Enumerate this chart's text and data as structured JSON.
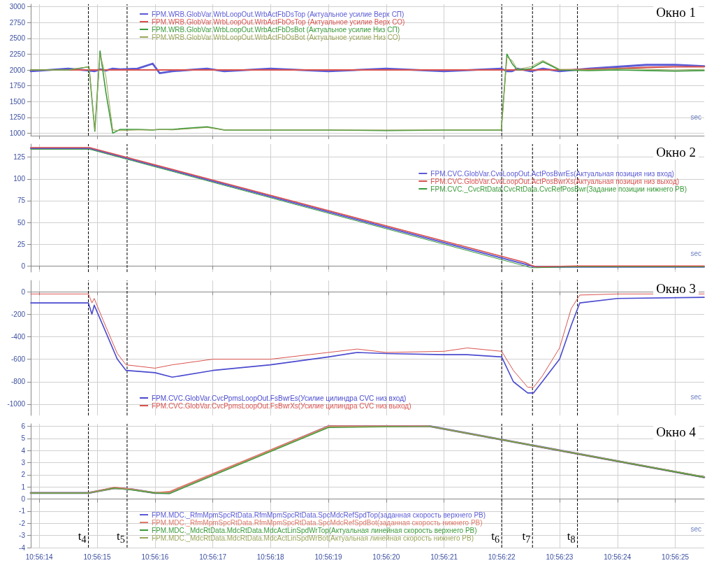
{
  "chart_data": [
    {
      "type": "line",
      "title": "Окно 1",
      "xlabel": "sec",
      "tick_labels": "y",
      "grid": true,
      "legend": "top left",
      "xlim": [
        10.937181,
        10.940417
      ],
      "ylim": [
        960,
        3040
      ],
      "xticks": [
        {
          "value": 10.937222,
          "label": null
        },
        {
          "value": 10.9375,
          "label": null
        },
        {
          "value": 10.937778,
          "label": null
        },
        {
          "value": 10.938056,
          "label": null
        },
        {
          "value": 10.938333,
          "label": null
        },
        {
          "value": 10.938611,
          "label": null
        },
        {
          "value": 10.938889,
          "label": null
        },
        {
          "value": 10.939167,
          "label": null
        },
        {
          "value": 10.939444,
          "label": null
        },
        {
          "value": 10.939722,
          "label": null
        },
        {
          "value": 10.94,
          "label": null
        },
        {
          "value": 10.940278,
          "label": null
        }
      ],
      "yticks": [
        1000,
        1250,
        1500,
        1750,
        2000,
        2250,
        2500,
        2750,
        3000
      ],
      "x": [
        10.937181,
        10.937361,
        10.937461,
        10.937489,
        10.937514,
        10.937542,
        10.937575,
        10.937611,
        10.937694,
        10.937767,
        10.9378,
        10.937861,
        10.938028,
        10.938111,
        10.938333,
        10.938611,
        10.938889,
        10.939167,
        10.939442,
        10.939469,
        10.939494,
        10.939519,
        10.939583,
        10.939642,
        10.939722,
        10.939861,
        10.94,
        10.940139,
        10.940278,
        10.940417
      ],
      "series": [
        {
          "name": "FPM.WRB.GlobVar.WrbLoopOut.WrbActFbDsTop (Актуальное усилие Верх СП)",
          "color": "#5b5bd6",
          "values": [
            1980,
            2020,
            1990,
            1980,
            2010,
            1990,
            2020,
            2010,
            2020,
            2100,
            1950,
            1980,
            2020,
            1980,
            2020,
            1980,
            2020,
            1980,
            2020,
            1980,
            1980,
            2020,
            1980,
            2020,
            1980,
            2020,
            2050,
            2080,
            2080,
            2060
          ]
        },
        {
          "name": "FPM.WRB.GlobVar.WrbLoopOut.WrbActFbOsTop (Актуальное усилие Верх СО)",
          "color": "#d9534f",
          "values": [
            2000,
            2000,
            2000,
            2000,
            2000,
            2000,
            2000,
            2000,
            2000,
            2000,
            2000,
            2000,
            2000,
            2000,
            2000,
            2000,
            2000,
            2000,
            2000,
            2000,
            2000,
            2000,
            2000,
            2000,
            2000,
            2010,
            2020,
            2040,
            2050,
            2050
          ]
        },
        {
          "name": "FPM.WRB.GlobVar.WrbLoopOut.WrbActFbDsBot (Актуальное усилие Низ СП)",
          "color": "#3a9a3a",
          "values": [
            2000,
            2000,
            2050,
            1030,
            2300,
            1650,
            1000,
            1060,
            1060,
            1050,
            1060,
            1060,
            1100,
            1050,
            1050,
            1050,
            1040,
            1050,
            1050,
            2250,
            2100,
            2000,
            2020,
            2130,
            2000,
            1990,
            2000,
            1990,
            1980,
            1990
          ]
        },
        {
          "name": "FPM.WRB.GlobVar.WrbLoopOut.WrbActFbOsBot (Актуальное усилие Низ СО)",
          "color": "#9aa55a",
          "values": [
            2000,
            2000,
            2050,
            1050,
            2250,
            1900,
            1050,
            1040,
            1050,
            1050,
            1060,
            1050,
            1090,
            1050,
            1050,
            1050,
            1050,
            1050,
            1050,
            2200,
            2150,
            2010,
            2050,
            2150,
            2010,
            2000,
            2020,
            2010,
            2000,
            2010
          ]
        }
      ],
      "ref_lines": [
        {
          "axis": "x",
          "value": 10.937458,
          "label": null,
          "color": "#000000",
          "line_style": "dashed"
        },
        {
          "axis": "x",
          "value": 10.937644,
          "label": null,
          "color": "#000000",
          "line_style": "dashed"
        },
        {
          "axis": "x",
          "value": 10.939444,
          "label": null,
          "color": "#000000",
          "line_style": "dashed"
        },
        {
          "axis": "x",
          "value": 10.939592,
          "label": null,
          "color": "#000000",
          "line_style": "dashed"
        },
        {
          "axis": "x",
          "value": 10.939808,
          "label": null,
          "color": "#000000",
          "line_style": "dashed"
        }
      ]
    },
    {
      "type": "line",
      "title": "Окно 2",
      "xlabel": "sec",
      "tick_labels": "y",
      "grid": true,
      "legend": "top right",
      "xlim": [
        10.937181,
        10.940417
      ],
      "ylim": [
        -7,
        140
      ],
      "xticks": [
        {
          "value": 10.937222,
          "label": null
        },
        {
          "value": 10.9375,
          "label": null
        },
        {
          "value": 10.937778,
          "label": null
        },
        {
          "value": 10.938056,
          "label": null
        },
        {
          "value": 10.938333,
          "label": null
        },
        {
          "value": 10.938611,
          "label": null
        },
        {
          "value": 10.938889,
          "label": null
        },
        {
          "value": 10.939167,
          "label": null
        },
        {
          "value": 10.939444,
          "label": null
        },
        {
          "value": 10.939722,
          "label": null
        },
        {
          "value": 10.94,
          "label": null
        },
        {
          "value": 10.940278,
          "label": null
        }
      ],
      "yticks": [
        0,
        25,
        50,
        75,
        100,
        125
      ],
      "x": [
        10.937181,
        10.937464,
        10.939556,
        10.939583,
        10.939611,
        10.939806,
        10.940417
      ],
      "series": [
        {
          "name": "FPM.CVC.GlobVar.CvcLoopOut.ActPosBwrEs(Актуальная позиция низ вход)",
          "color": "#5b5bd6",
          "values": [
            135,
            135,
            2,
            0,
            -1,
            -1,
            -1
          ]
        },
        {
          "name": "FPM.CVC.GlobVar.CvcLoopOut.ActPosBwrXs(Актуальная позиция низ выход)",
          "color": "#d9534f",
          "values": [
            136,
            136,
            4,
            1,
            -1,
            0,
            0
          ]
        },
        {
          "name": "FPM.CVC._CvcRtData.CvcRtData.CvcRefPosBwr(Задание позиции нижнего РВ)",
          "color": "#3a9a3a",
          "values": [
            134,
            134,
            0,
            -2,
            -2,
            -1,
            -1
          ]
        }
      ],
      "ref_lines": [
        {
          "axis": "x",
          "value": 10.937458,
          "label": null,
          "color": "#000000",
          "line_style": "dashed"
        },
        {
          "axis": "x",
          "value": 10.937644,
          "label": null,
          "color": "#000000",
          "line_style": "dashed"
        },
        {
          "axis": "x",
          "value": 10.939444,
          "label": null,
          "color": "#000000",
          "line_style": "dashed"
        },
        {
          "axis": "x",
          "value": 10.939592,
          "label": null,
          "color": "#000000",
          "line_style": "dashed"
        },
        {
          "axis": "x",
          "value": 10.939808,
          "label": null,
          "color": "#000000",
          "line_style": "dashed"
        }
      ]
    },
    {
      "type": "line",
      "title": "Окно 3",
      "xlabel": "sec",
      "tick_labels": "y",
      "grid": true,
      "legend": "bottom left",
      "xlim": [
        10.937181,
        10.940417
      ],
      "ylim": [
        -1100,
        100
      ],
      "xticks": [
        {
          "value": 10.937222,
          "label": null
        },
        {
          "value": 10.9375,
          "label": null
        },
        {
          "value": 10.937778,
          "label": null
        },
        {
          "value": 10.938056,
          "label": null
        },
        {
          "value": 10.938333,
          "label": null
        },
        {
          "value": 10.938611,
          "label": null
        },
        {
          "value": 10.938889,
          "label": null
        },
        {
          "value": 10.939167,
          "label": null
        },
        {
          "value": 10.939444,
          "label": null
        },
        {
          "value": 10.939722,
          "label": null
        },
        {
          "value": 10.94,
          "label": null
        },
        {
          "value": 10.940278,
          "label": null
        }
      ],
      "yticks": [
        -1000,
        -800,
        -600,
        -400,
        -200,
        0
      ],
      "x": [
        10.937181,
        10.937458,
        10.937475,
        10.937486,
        10.937528,
        10.937597,
        10.937639,
        10.937778,
        10.937861,
        10.938056,
        10.938333,
        10.938611,
        10.93875,
        10.938889,
        10.939167,
        10.939278,
        10.939444,
        10.9395,
        10.939569,
        10.939597,
        10.939639,
        10.939722,
        10.939778,
        10.939819,
        10.94,
        10.940417
      ],
      "series": [
        {
          "name": "FPM.CVC.GlobVar.CvcPpmsLoopOut.FsBwrEs(Усилие цилиндра CVC низ вход)",
          "color": "#4a4ad0",
          "values": [
            -100,
            -100,
            -200,
            -120,
            -300,
            -600,
            -700,
            -720,
            -760,
            -700,
            -650,
            -580,
            -540,
            -550,
            -560,
            -560,
            -580,
            -800,
            -900,
            -900,
            -800,
            -600,
            -300,
            -100,
            -60,
            -50
          ]
        },
        {
          "name": "FPM.CVC.GlobVar.CvcPpmsLoopOut.FsBwrXs(Усилие цилиндра CVC низ выход)",
          "color": "#d9534f",
          "values": [
            -20,
            -20,
            -100,
            -60,
            -250,
            -550,
            -650,
            -680,
            -650,
            -600,
            -600,
            -540,
            -510,
            -540,
            -530,
            -500,
            -530,
            -700,
            -850,
            -850,
            -750,
            -500,
            -150,
            -30,
            -20,
            -20
          ]
        }
      ],
      "ref_lines": [
        {
          "axis": "x",
          "value": 10.937458,
          "label": null,
          "color": "#000000",
          "line_style": "dashed"
        },
        {
          "axis": "x",
          "value": 10.937644,
          "label": null,
          "color": "#000000",
          "line_style": "dashed"
        },
        {
          "axis": "x",
          "value": 10.939444,
          "label": null,
          "color": "#000000",
          "line_style": "dashed"
        },
        {
          "axis": "x",
          "value": 10.939592,
          "label": null,
          "color": "#000000",
          "line_style": "dashed"
        },
        {
          "axis": "x",
          "value": 10.939808,
          "label": null,
          "color": "#000000",
          "line_style": "dashed"
        }
      ]
    },
    {
      "type": "line",
      "title": "Окно 4",
      "xlabel": "sec",
      "grid": true,
      "legend": "bottom left",
      "xlim": [
        10.937181,
        10.940417
      ],
      "ylim": [
        -4,
        6.2
      ],
      "xticks": [
        {
          "value": 10.937222,
          "label": "10:56:14"
        },
        {
          "value": 10.9375,
          "label": "10:56:15"
        },
        {
          "value": 10.937778,
          "label": "10:56:16"
        },
        {
          "value": 10.938056,
          "label": "10:56:17"
        },
        {
          "value": 10.938333,
          "label": "10:56:18"
        },
        {
          "value": 10.938611,
          "label": "10:56:19"
        },
        {
          "value": 10.938889,
          "label": "10:56:20"
        },
        {
          "value": 10.939167,
          "label": "10:56:21"
        },
        {
          "value": 10.939444,
          "label": "10:56:22"
        },
        {
          "value": 10.939722,
          "label": "10:56:23"
        },
        {
          "value": 10.94,
          "label": "10:56:24"
        },
        {
          "value": 10.940278,
          "label": "10:56:25"
        }
      ],
      "yticks": [
        -4,
        -3,
        -2,
        -1,
        0,
        1,
        2,
        3,
        4,
        5,
        6
      ],
      "x": [
        10.937181,
        10.937458,
        10.937583,
        10.937667,
        10.937778,
        10.937847,
        10.938611,
        10.939097,
        10.940417
      ],
      "series": [
        {
          "name": "FPM.MDC._RfmMpmSpcRtData.RfmMpmSpcRtData.SpcMdcRefSpdTop(заданная скорость верхнего РВ)",
          "color": "#5b5bd6",
          "values": [
            0.5,
            0.5,
            0.9,
            0.8,
            0.5,
            0.5,
            6,
            6,
            1.8
          ]
        },
        {
          "name": "FPM.MDC._RfmMpmSpcRtData.RfmMpmSpcRtData.SpcMdcRefSpdBot(заданная скорость нижнего РВ)",
          "color": "#e07b6a",
          "values": [
            0.5,
            0.5,
            0.95,
            0.8,
            0.5,
            0.6,
            6,
            6,
            1.8
          ]
        },
        {
          "name": "FPM.MDC._MdcRtData.MdcRtData.MdcActLinSpdWrTop(Актуальная линейная скорость верхнего РВ)",
          "color": "#3a9a3a",
          "values": [
            0.5,
            0.5,
            0.9,
            0.75,
            0.5,
            0.45,
            5.9,
            6,
            1.8
          ]
        },
        {
          "name": "FPM.MDC._MdcRtData.MdcRtData.MdcActLinSpdWrBot(Актуальная линейная скорость нижнего РВ)",
          "color": "#9aa55a",
          "values": [
            0.5,
            0.5,
            0.85,
            0.8,
            0.55,
            0.5,
            5.95,
            6,
            1.85
          ]
        }
      ],
      "ref_lines": [
        {
          "axis": "x",
          "value": 10.937458,
          "label": "t$_{4}$",
          "color": "#000000",
          "line_style": "dashed"
        },
        {
          "axis": "x",
          "value": 10.937644,
          "label": "t$_{5}$",
          "color": "#000000",
          "line_style": "dashed"
        },
        {
          "axis": "x",
          "value": 10.939444,
          "label": "t$_{6}$",
          "color": "#000000",
          "line_style": "dashed"
        },
        {
          "axis": "x",
          "value": 10.939592,
          "label": "t$_{7}$",
          "color": "#000000",
          "line_style": "dashed"
        },
        {
          "axis": "x",
          "value": 10.939808,
          "label": "t$_{8}$",
          "color": "#000000",
          "line_style": "dashed"
        }
      ]
    }
  ]
}
